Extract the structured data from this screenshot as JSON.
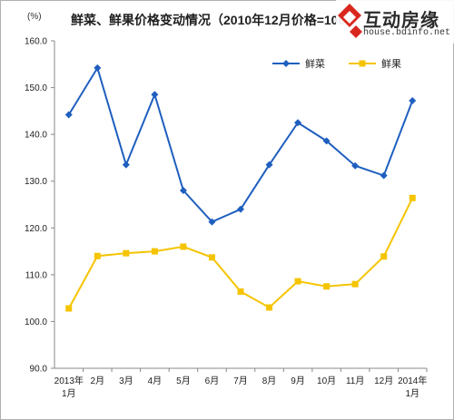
{
  "chart_data": {
    "type": "line",
    "title": "鲜菜、鲜果价格变动情况（2010年12月价格=100）",
    "unit_label": "(%)",
    "xlabel": "",
    "ylabel": "",
    "ylim": [
      90,
      160
    ],
    "yticks": [
      "160.0",
      "150.0",
      "140.0",
      "130.0",
      "120.0",
      "110.0",
      "100.0",
      "90.0"
    ],
    "categories": [
      [
        "2013年",
        "1月"
      ],
      [
        "2月"
      ],
      [
        "3月"
      ],
      [
        "4月"
      ],
      [
        "5月"
      ],
      [
        "6月"
      ],
      [
        "7月"
      ],
      [
        "8月"
      ],
      [
        "9月"
      ],
      [
        "10月"
      ],
      [
        "11月"
      ],
      [
        "12月"
      ],
      [
        "2014年",
        "1月"
      ]
    ],
    "grid": false,
    "legend_position": "top-right",
    "series": [
      {
        "name": "鲜菜",
        "color": "#1f5fbf",
        "marker": "diamond",
        "values": [
          144.2,
          154.2,
          133.5,
          148.5,
          128.0,
          121.3,
          124.0,
          133.5,
          142.5,
          138.6,
          133.3,
          131.2,
          147.2
        ]
      },
      {
        "name": "鲜果",
        "color": "#f5c400",
        "marker": "square",
        "values": [
          102.8,
          114.0,
          114.6,
          115.0,
          116.0,
          113.7,
          106.4,
          103.0,
          108.6,
          107.5,
          108.0,
          113.9,
          126.4
        ]
      }
    ]
  },
  "watermark": {
    "name": "互动房缘",
    "url": "house.bdinfo.net"
  }
}
